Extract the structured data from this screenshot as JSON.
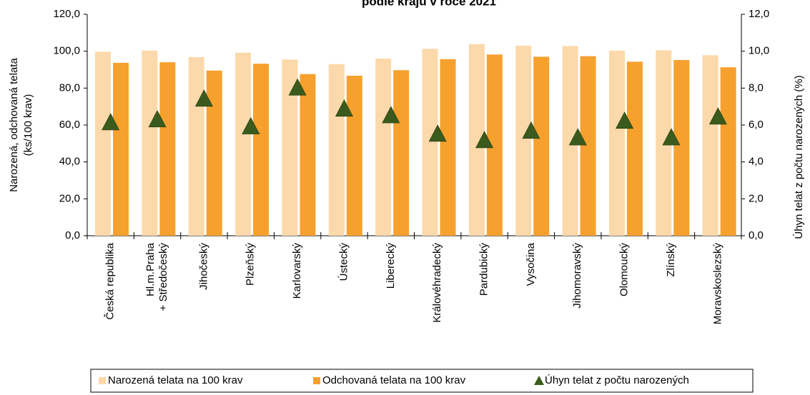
{
  "chart_data": {
    "type": "bar",
    "title": "podle krajů v roce 2021",
    "ylabel": [
      "Narozená, odchovaná telata",
      "(ks/100 krav)"
    ],
    "y2label": "Úhyn telat z počtu narozených (%)",
    "categories": [
      "Česká republika",
      [
        "Hl.m.Praha",
        "+ Středočeský"
      ],
      "Jihočeský",
      "Plzeňský",
      "Karlovarský",
      "Ústecký",
      "Liberecký",
      "Královéhradecký",
      "Pardubický",
      "Vysočina",
      "Jihomoravský",
      "Olomoucký",
      "Zlínský",
      "Moravskoslezský"
    ],
    "series": [
      {
        "name": "Narozená telata na 100 krav",
        "color": "#fcd9aa",
        "type": "bar",
        "values": [
          99.7,
          100.3,
          96.8,
          99.2,
          95.5,
          93.0,
          96.0,
          101.3,
          103.8,
          103.0,
          102.8,
          100.3,
          100.5,
          97.8
        ]
      },
      {
        "name": "Odchovaná telata na 100 krav",
        "color": "#f6a12e",
        "type": "bar",
        "values": [
          93.7,
          94.0,
          89.5,
          93.2,
          87.6,
          86.7,
          89.7,
          95.7,
          98.2,
          97.0,
          97.3,
          94.3,
          95.2,
          91.3
        ]
      },
      {
        "name": "Úhyn telat z počtu narozených",
        "color": "#3b5a1d",
        "type": "scatter",
        "axis": "y2",
        "values": [
          6.12,
          6.28,
          7.4,
          5.9,
          8.0,
          6.86,
          6.5,
          5.5,
          5.15,
          5.66,
          5.3,
          6.2,
          5.3,
          6.43
        ]
      }
    ],
    "ylim": [
      0,
      120
    ],
    "yticks": [
      {
        "value": 0,
        "label": "0,0"
      },
      {
        "value": 20,
        "label": "20,0"
      },
      {
        "value": 40,
        "label": "40,0"
      },
      {
        "value": 60,
        "label": "60,0"
      },
      {
        "value": 80,
        "label": "80,0"
      },
      {
        "value": 100,
        "label": "100,0"
      },
      {
        "value": 120,
        "label": "120,0"
      }
    ],
    "y2lim": [
      0,
      12
    ],
    "y2ticks": [
      {
        "value": 0,
        "label": "0,0"
      },
      {
        "value": 2,
        "label": "2,0"
      },
      {
        "value": 4,
        "label": "4,0"
      },
      {
        "value": 6,
        "label": "6,0"
      },
      {
        "value": 8,
        "label": "8,0"
      },
      {
        "value": 10,
        "label": "10,0"
      },
      {
        "value": 12,
        "label": "12,0"
      }
    ],
    "legend": "bottom"
  }
}
